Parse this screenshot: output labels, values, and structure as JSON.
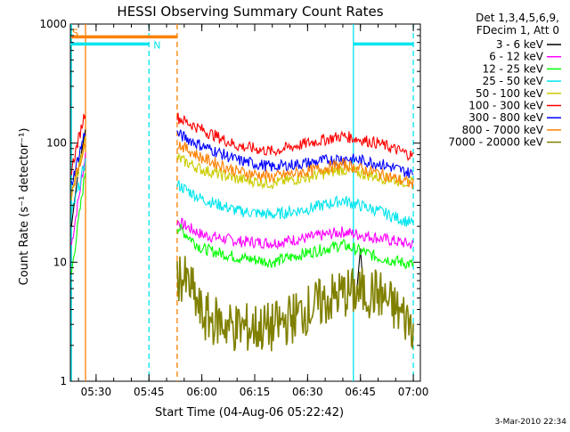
{
  "chart_data": {
    "type": "line",
    "title": "HESSI Observing Summary Count Rates",
    "xlabel": "Start Time (04-Aug-06 05:22:42)",
    "ylabel": "Count Rate (s⁻¹ detector⁻¹)",
    "yscale": "log",
    "ylim": [
      1,
      1000
    ],
    "xlim": [
      "05:22:42",
      "07:02:00"
    ],
    "y_tick_labels": [
      "1",
      "10",
      "100",
      "1000"
    ],
    "x_tick_labels": [
      "05:30",
      "05:45",
      "06:00",
      "06:15",
      "06:30",
      "06:45",
      "07:00"
    ],
    "x_tick_minutes": [
      330,
      345,
      360,
      375,
      390,
      405,
      420
    ],
    "grid": false,
    "legend_position": "right",
    "legend_header": [
      "Det 1,3,4,5,6,9,",
      "FDecim 1, Att 0"
    ],
    "data_gap": {
      "from": "05:27",
      "to": "05:53"
    },
    "series": [
      {
        "name": "3 - 6 keV",
        "color": "#000000",
        "x": [
          "05:23",
          "05:25",
          "05:27",
          "06:44",
          "06:45",
          "06:46"
        ],
        "values": [
          20,
          60,
          130,
          6,
          13,
          5
        ]
      },
      {
        "name": "6 - 12 keV",
        "color": "#ff00ff",
        "x": [
          "05:23",
          "05:27",
          "05:53",
          "06:00",
          "06:10",
          "06:20",
          "06:30",
          "06:40",
          "06:50",
          "07:00"
        ],
        "values": [
          14,
          80,
          22,
          17,
          15,
          14.5,
          16,
          18,
          16,
          14
        ]
      },
      {
        "name": "12 - 25 keV",
        "color": "#00ff00",
        "x": [
          "05:23",
          "05:27",
          "05:53",
          "06:00",
          "06:10",
          "06:20",
          "06:30",
          "06:40",
          "06:50",
          "07:00"
        ],
        "values": [
          8,
          60,
          20,
          13,
          11,
          10,
          12,
          14,
          11,
          9.5
        ]
      },
      {
        "name": "25 - 50 keV",
        "color": "#00e5ee",
        "x": [
          "05:23",
          "05:27",
          "05:53",
          "06:00",
          "06:10",
          "06:20",
          "06:30",
          "06:40",
          "06:50",
          "07:00"
        ],
        "values": [
          25,
          70,
          45,
          34,
          27,
          25,
          28,
          33,
          27,
          21
        ]
      },
      {
        "name": "50 - 100 keV",
        "color": "#cccc00",
        "x": [
          "05:23",
          "05:27",
          "05:53",
          "06:00",
          "06:10",
          "06:20",
          "06:30",
          "06:40",
          "06:50",
          "07:00"
        ],
        "values": [
          35,
          110,
          75,
          60,
          50,
          46,
          52,
          60,
          52,
          46
        ]
      },
      {
        "name": "100 - 300 keV",
        "color": "#ff0000",
        "x": [
          "05:23",
          "05:27",
          "05:53",
          "06:00",
          "06:10",
          "06:20",
          "06:30",
          "06:40",
          "06:50",
          "07:00"
        ],
        "values": [
          60,
          190,
          165,
          130,
          95,
          85,
          100,
          115,
          100,
          78
        ]
      },
      {
        "name": "300 - 800 keV",
        "color": "#0000ff",
        "x": [
          "05:23",
          "05:27",
          "05:53",
          "06:00",
          "06:10",
          "06:20",
          "06:30",
          "06:40",
          "06:50",
          "07:00"
        ],
        "values": [
          45,
          130,
          120,
          95,
          72,
          63,
          68,
          75,
          68,
          55
        ]
      },
      {
        "name": "800 - 7000 keV",
        "color": "#ff8000",
        "x": [
          "05:23",
          "05:27",
          "05:53",
          "06:00",
          "06:10",
          "06:20",
          "06:30",
          "06:40",
          "06:50",
          "07:00"
        ],
        "values": [
          40,
          100,
          100,
          75,
          58,
          52,
          58,
          66,
          56,
          45
        ]
      },
      {
        "name": "7000 - 20000 keV",
        "color": "#808000",
        "x": [
          "05:53",
          "05:57",
          "06:00",
          "06:10",
          "06:20",
          "06:30",
          "06:40",
          "06:50",
          "06:55",
          "07:00"
        ],
        "values": [
          8,
          6,
          3.5,
          2.8,
          2.8,
          4,
          5.5,
          5.5,
          4,
          3
        ]
      }
    ],
    "annotations": [
      {
        "label": "S",
        "color": "#ff8000",
        "x_from": "05:23",
        "x_to": "05:53",
        "value": 780
      },
      {
        "label": "N",
        "color": "#00e5ee",
        "x_from": "05:22:42",
        "x_to": "05:45",
        "value": 680
      },
      {
        "label": "",
        "color": "#00e5ee",
        "x_from": "06:43",
        "x_to": "07:00",
        "value": 680
      }
    ],
    "vertical_markers": [
      {
        "x": "05:23",
        "color": "#00e5ee",
        "style": "solid"
      },
      {
        "x": "05:27",
        "color": "#ff8000",
        "style": "solid"
      },
      {
        "x": "05:45",
        "color": "#00e5ee",
        "style": "dashed"
      },
      {
        "x": "05:53",
        "color": "#ff8000",
        "style": "dashed"
      },
      {
        "x": "06:43",
        "color": "#00e5ee",
        "style": "solid"
      },
      {
        "x": "07:00",
        "color": "#00e5ee",
        "style": "dashed"
      }
    ]
  },
  "footer_date": "3-Mar-2010 22:34"
}
